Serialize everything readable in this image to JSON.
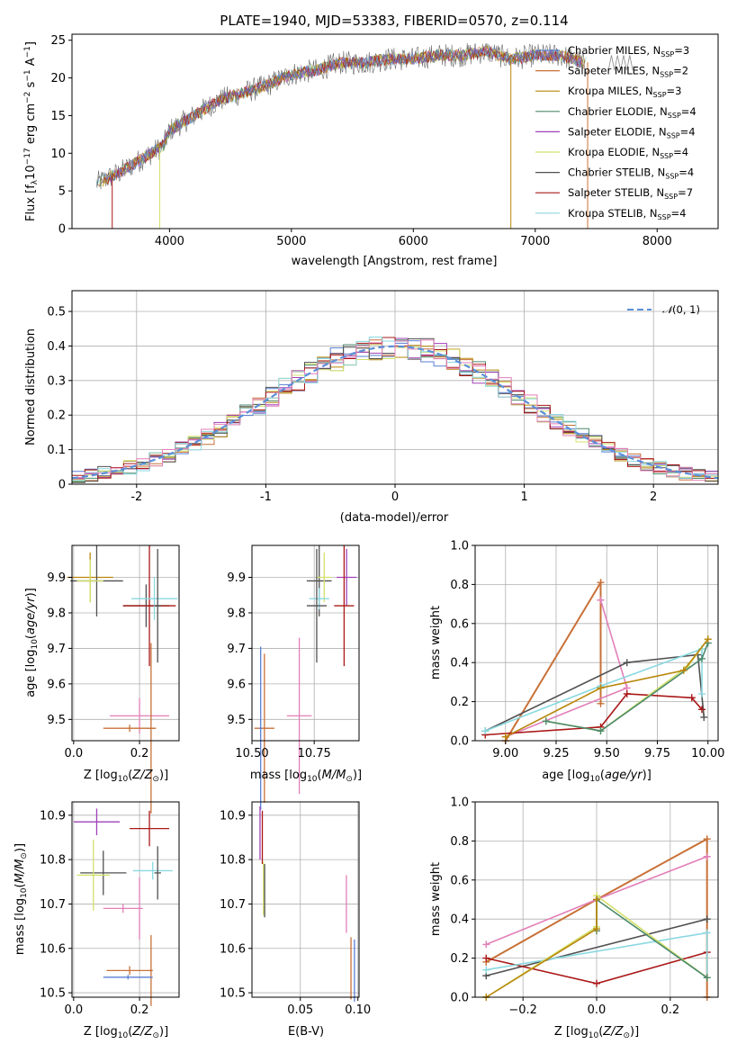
{
  "colors": {
    "c_chabrier_miles": "#5b7fd4",
    "c_salpeter_miles": "#c87137",
    "c_kroupa_miles": "#b8860b",
    "c_chabrier_elodie": "#4d8a6c",
    "c_salpeter_elodie": "#a040b8",
    "c_kroupa_elodie": "#d4e06a",
    "c_chabrier_stelib": "#505050",
    "c_salpeter_stelib": "#aa1818",
    "c_kroupa_stelib": "#8ad8e0",
    "c_pink": "#e27fb8",
    "c_normal": "#5b8fd8"
  },
  "chart_data": [
    {
      "type": "line",
      "title": "PLATE=1940, MJD=53383, FIBERID=0570, z=0.114",
      "xlabel": "wavelength [Angstrom, rest frame]",
      "ylabel": "Flux [f",
      "xlim": [
        3200,
        8500
      ],
      "ylim": [
        0,
        25.8
      ],
      "xticks": [
        4000,
        5000,
        6000,
        7000,
        8000
      ],
      "yticks": [
        0,
        5,
        10,
        15,
        20,
        25
      ],
      "legend_position": "upper right",
      "legend": [
        {
          "name": "Chabrier MILES, N",
          "sub": "SSP",
          "val": "=3"
        },
        {
          "name": "Salpeter MILES, N",
          "sub": "SSP",
          "val": "=2"
        },
        {
          "name": "Kroupa MILES, N",
          "sub": "SSP",
          "val": "=3"
        },
        {
          "name": "Chabrier ELODIE, N",
          "sub": "SSP",
          "val": "=4"
        },
        {
          "name": "Salpeter ELODIE, N",
          "sub": "SSP",
          "val": "=4"
        },
        {
          "name": "Kroupa ELODIE, N",
          "sub": "SSP",
          "val": "=4"
        },
        {
          "name": "Chabrier STELIB, N",
          "sub": "SSP",
          "val": "=4"
        },
        {
          "name": "Salpeter STELIB, N",
          "sub": "SSP",
          "val": "=7"
        },
        {
          "name": "Kroupa STELIB, N",
          "sub": "SSP",
          "val": "=4"
        }
      ],
      "continuum": [
        [
          3400,
          6.0
        ],
        [
          3600,
          7.5
        ],
        [
          3800,
          9.5
        ],
        [
          3950,
          11.0
        ],
        [
          4000,
          13.0
        ],
        [
          4200,
          15.0
        ],
        [
          4400,
          17.0
        ],
        [
          4600,
          18.0
        ],
        [
          4800,
          19.0
        ],
        [
          5000,
          20.5
        ],
        [
          5200,
          21.0
        ],
        [
          5400,
          22.0
        ],
        [
          5600,
          22.0
        ],
        [
          5800,
          22.5
        ],
        [
          6000,
          22.5
        ],
        [
          6200,
          23.0
        ],
        [
          6400,
          23.0
        ],
        [
          6600,
          23.5
        ],
        [
          6800,
          22.5
        ],
        [
          7000,
          23.0
        ],
        [
          7200,
          23.0
        ],
        [
          7400,
          22.0
        ],
        [
          7600,
          22.5
        ],
        [
          7800,
          22.5
        ],
        [
          8000,
          22.5
        ]
      ]
    },
    {
      "type": "histogram",
      "xlabel": "(data-model)/error",
      "ylabel": "Normed distribution",
      "xlim": [
        -2.5,
        2.5
      ],
      "ylim": [
        0,
        0.56
      ],
      "xticks": [
        -2,
        -1,
        0,
        1,
        2
      ],
      "yticks": [
        0.0,
        0.1,
        0.2,
        0.3,
        0.4,
        0.5
      ],
      "legend": "N(0,1)",
      "legend_position": "upper right"
    },
    {
      "type": "scatter",
      "xlabel": "Z [log",
      "ylabel": "age  [log",
      "xlim": [
        -0.005,
        0.32
      ],
      "ylim": [
        9.44,
        9.99
      ],
      "xticks": [
        "0.0",
        "0.2"
      ],
      "yticks": [
        "9.5",
        "9.6",
        "9.7",
        "9.8",
        "9.9"
      ],
      "points": [
        {
          "x": 0.05,
          "y": 9.9,
          "xerr": 0.07,
          "yerr": 0.07,
          "c": "c_kroupa_miles"
        },
        {
          "x": 0.07,
          "y": 9.89,
          "xerr": 0.08,
          "yerr": 0.1,
          "c": "c_chabrier_stelib"
        },
        {
          "x": 0.05,
          "y": 9.89,
          "xerr": 0.04,
          "yerr": 0.06,
          "c": "c_kroupa_elodie"
        },
        {
          "x": 0.22,
          "y": 9.82,
          "xerr": 0.07,
          "yerr": 0.06,
          "c": "c_chabrier_stelib"
        },
        {
          "x": 0.23,
          "y": 9.82,
          "xerr": 0.08,
          "yerr": 0.17,
          "c": "c_salpeter_stelib"
        },
        {
          "x": 0.245,
          "y": 9.84,
          "xerr": 0.07,
          "yerr": 0.06,
          "c": "c_kroupa_stelib"
        },
        {
          "x": 0.255,
          "y": 9.82,
          "xerr": 0.01,
          "yerr": 0.16,
          "c": "c_chabrier_stelib"
        },
        {
          "x": 0.2,
          "y": 9.51,
          "xerr": 0.09,
          "yerr": 0.05,
          "c": "c_pink"
        },
        {
          "x": 0.17,
          "y": 9.475,
          "xerr": 0.08,
          "yerr": 0.01,
          "c": "c_salpeter_miles"
        },
        {
          "x": 0.235,
          "y": 9.475,
          "xerr": 0.01,
          "yerr": 0.24,
          "c": "c_salpeter_miles"
        }
      ]
    },
    {
      "type": "scatter",
      "xlabel": "mass [log",
      "ylabel": "",
      "xlim": [
        10.5,
        10.93
      ],
      "ylim": [
        9.44,
        9.99
      ],
      "xticks": [
        "10.50",
        "10.75"
      ],
      "yticks": [
        "9.5",
        "9.6",
        "9.7",
        "9.8",
        "9.9"
      ],
      "points": [
        {
          "x": 10.77,
          "y": 9.89,
          "xerr": 0.05,
          "yerr": 0.1,
          "c": "c_chabrier_stelib"
        },
        {
          "x": 10.79,
          "y": 9.9,
          "xerr": 0.03,
          "yerr": 0.07,
          "c": "c_kroupa_elodie"
        },
        {
          "x": 10.88,
          "y": 9.9,
          "xerr": 0.04,
          "yerr": 0.08,
          "c": "c_salpeter_elodie"
        },
        {
          "x": 10.77,
          "y": 9.84,
          "xerr": 0.04,
          "yerr": 0.03,
          "c": "c_kroupa_stelib"
        },
        {
          "x": 10.76,
          "y": 9.82,
          "xerr": 0.04,
          "yerr": 0.16,
          "c": "c_chabrier_stelib"
        },
        {
          "x": 10.87,
          "y": 9.82,
          "xerr": 0.04,
          "yerr": 0.17,
          "c": "c_salpeter_stelib"
        },
        {
          "x": 10.69,
          "y": 9.51,
          "xerr": 0.05,
          "yerr": 0.22,
          "c": "c_pink"
        },
        {
          "x": 10.55,
          "y": 9.475,
          "xerr": 0.04,
          "yerr": 0.21,
          "c": "c_salpeter_miles"
        },
        {
          "x": 10.535,
          "y": 9.475,
          "xerr": 0.005,
          "yerr": 0.23,
          "c": "c_chabrier_miles"
        }
      ]
    },
    {
      "type": "line",
      "xlabel": "age  [log",
      "ylabel": "mass weight",
      "xlim": [
        8.85,
        10.05
      ],
      "ylim": [
        0,
        1.0
      ],
      "xticks": [
        "9.00",
        "9.25",
        "9.50",
        "9.75",
        "10.00"
      ],
      "yticks": [
        "0.0",
        "0.2",
        "0.4",
        "0.6",
        "0.8",
        "1.0"
      ],
      "series": [
        {
          "c": "c_salpeter_miles",
          "x": [
            9.0,
            9.47,
            9.47
          ],
          "y": [
            0.0,
            0.81,
            0.19
          ],
          "w": 2
        },
        {
          "c": "c_pink",
          "x": [
            9.47,
            9.6,
            9.0
          ],
          "y": [
            0.72,
            0.27,
            0.02
          ]
        },
        {
          "c": "c_chabrier_stelib",
          "x": [
            8.9,
            9.6,
            9.95,
            9.98
          ],
          "y": [
            0.05,
            0.4,
            0.44,
            0.12
          ]
        },
        {
          "c": "c_salpeter_stelib",
          "x": [
            8.9,
            9.47,
            9.6,
            9.92,
            9.97
          ],
          "y": [
            0.03,
            0.07,
            0.24,
            0.22,
            0.16
          ]
        },
        {
          "c": "c_kroupa_stelib",
          "x": [
            8.9,
            9.47,
            9.97,
            9.97
          ],
          "y": [
            0.05,
            0.28,
            0.47,
            0.24
          ]
        },
        {
          "c": "c_kroupa_elodie",
          "x": [
            9.2,
            9.47,
            9.9,
            10.0
          ],
          "y": [
            0.1,
            0.05,
            0.38,
            0.52
          ]
        },
        {
          "c": "c_chabrier_elodie",
          "x": [
            9.2,
            9.47,
            9.97,
            10.0
          ],
          "y": [
            0.1,
            0.05,
            0.42,
            0.5
          ]
        },
        {
          "c": "c_kroupa_miles",
          "x": [
            9.0,
            9.47,
            9.88,
            10.0
          ],
          "y": [
            0.02,
            0.27,
            0.36,
            0.52
          ]
        }
      ]
    },
    {
      "type": "scatter",
      "xlabel": "Z [log",
      "ylabel": "mass [log",
      "xlim": [
        -0.005,
        0.32
      ],
      "ylim": [
        10.49,
        10.93
      ],
      "xticks": [
        "0.0",
        "0.2"
      ],
      "yticks": [
        "10.5",
        "10.6",
        "10.7",
        "10.8",
        "10.9"
      ],
      "points": [
        {
          "x": 0.07,
          "y": 10.885,
          "xerr": 0.07,
          "yerr": 0.03,
          "c": "c_salpeter_elodie"
        },
        {
          "x": 0.23,
          "y": 10.87,
          "xerr": 0.06,
          "yerr": 0.04,
          "c": "c_salpeter_stelib"
        },
        {
          "x": 0.09,
          "y": 10.77,
          "xerr": 0.07,
          "yerr": 0.05,
          "c": "c_chabrier_stelib"
        },
        {
          "x": 0.06,
          "y": 10.765,
          "xerr": 0.05,
          "yerr": 0.08,
          "c": "c_kroupa_elodie"
        },
        {
          "x": 0.24,
          "y": 10.775,
          "xerr": 0.06,
          "yerr": 0.02,
          "c": "c_kroupa_stelib"
        },
        {
          "x": 0.255,
          "y": 10.77,
          "xerr": 0.01,
          "yerr": 0.06,
          "c": "c_chabrier_stelib"
        },
        {
          "x": 0.15,
          "y": 10.69,
          "xerr": 0.06,
          "yerr": 0.01,
          "c": "c_pink"
        },
        {
          "x": 0.2,
          "y": 10.69,
          "xerr": 0.005,
          "yerr": 0.07,
          "c": "c_pink"
        },
        {
          "x": 0.17,
          "y": 10.55,
          "xerr": 0.07,
          "yerr": 0.01,
          "c": "c_salpeter_miles"
        },
        {
          "x": 0.235,
          "y": 10.55,
          "xerr": 0.005,
          "yerr": 0.08,
          "c": "c_salpeter_miles"
        },
        {
          "x": 0.165,
          "y": 10.535,
          "xerr": 0.075,
          "yerr": 0.005,
          "c": "c_chabrier_miles"
        }
      ]
    },
    {
      "type": "scatter",
      "xlabel": "E(B-V)",
      "ylabel": "",
      "xlim": [
        0.008,
        0.101
      ],
      "ylim": [
        10.49,
        10.93
      ],
      "xticks": [
        "0.05",
        "0.10"
      ],
      "yticks": [
        "10.5",
        "10.6",
        "10.7",
        "10.8",
        "10.9"
      ],
      "points": [
        {
          "x": 0.015,
          "y": 10.86,
          "xerr": 0.0,
          "yerr": 0.06,
          "c": "c_salpeter_elodie"
        },
        {
          "x": 0.017,
          "y": 10.85,
          "xerr": 0.0,
          "yerr": 0.06,
          "c": "c_salpeter_stelib"
        },
        {
          "x": 0.018,
          "y": 10.735,
          "xerr": 0.0,
          "yerr": 0.06,
          "c": "c_kroupa_elodie"
        },
        {
          "x": 0.019,
          "y": 10.73,
          "xerr": 0.0,
          "yerr": 0.06,
          "c": "c_chabrier_stelib"
        },
        {
          "x": 0.09,
          "y": 10.7,
          "xerr": 0.0,
          "yerr": 0.065,
          "c": "c_pink"
        },
        {
          "x": 0.094,
          "y": 10.555,
          "xerr": 0.0,
          "yerr": 0.07,
          "c": "c_salpeter_miles"
        },
        {
          "x": 0.097,
          "y": 10.55,
          "xerr": 0.0,
          "yerr": 0.07,
          "c": "c_chabrier_miles"
        }
      ]
    },
    {
      "type": "line",
      "xlabel": "Z [log",
      "ylabel": "mass weight",
      "xlim": [
        -0.33,
        0.33
      ],
      "ylim": [
        0,
        1.0
      ],
      "xticks": [
        "−0.2",
        "0.0",
        "0.2"
      ],
      "yticks": [
        "0.0",
        "0.2",
        "0.4",
        "0.6",
        "0.8",
        "1.0"
      ],
      "series": [
        {
          "c": "c_salpeter_miles",
          "x": [
            -0.3,
            0.0,
            0.3,
            0.3
          ],
          "y": [
            0.18,
            0.5,
            0.81,
            0.0
          ],
          "w": 2
        },
        {
          "c": "c_pink",
          "x": [
            -0.3,
            0.0,
            0.3
          ],
          "y": [
            0.27,
            0.5,
            0.72
          ]
        },
        {
          "c": "c_chabrier_stelib",
          "x": [
            -0.3,
            0.3
          ],
          "y": [
            0.11,
            0.4
          ]
        },
        {
          "c": "c_salpeter_stelib",
          "x": [
            -0.3,
            0.0,
            0.3
          ],
          "y": [
            0.2,
            0.07,
            0.23
          ]
        },
        {
          "c": "c_kroupa_stelib",
          "x": [
            -0.3,
            0.3,
            0.3
          ],
          "y": [
            0.14,
            0.33,
            0.1
          ]
        },
        {
          "c": "c_kroupa_elodie",
          "x": [
            -0.3,
            0.0,
            0.0,
            0.3
          ],
          "y": [
            0.0,
            0.36,
            0.52,
            0.1
          ]
        },
        {
          "c": "c_chabrier_elodie",
          "x": [
            0.0,
            0.0,
            0.3
          ],
          "y": [
            0.34,
            0.5,
            0.1
          ]
        },
        {
          "c": "c_kroupa_miles",
          "x": [
            -0.3,
            0.0,
            0.0
          ],
          "y": [
            0.0,
            0.35,
            0.5
          ]
        }
      ]
    }
  ]
}
